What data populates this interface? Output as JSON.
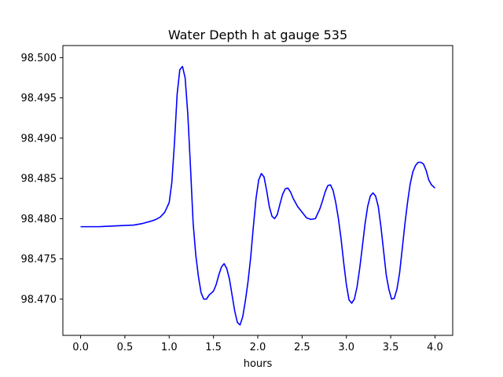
{
  "chart_data": {
    "type": "line",
    "title": "Water Depth h at gauge 535",
    "xlabel": "hours",
    "ylabel": "",
    "xlim": [
      -0.2,
      4.2
    ],
    "ylim": [
      98.4655,
      98.5015
    ],
    "xticks": [
      0.0,
      0.5,
      1.0,
      1.5,
      2.0,
      2.5,
      3.0,
      3.5,
      4.0
    ],
    "xtick_labels": [
      "0.0",
      "0.5",
      "1.0",
      "1.5",
      "2.0",
      "2.5",
      "3.0",
      "3.5",
      "4.0"
    ],
    "yticks": [
      98.47,
      98.475,
      98.48,
      98.485,
      98.49,
      98.495,
      98.5
    ],
    "ytick_labels": [
      "98.470",
      "98.475",
      "98.480",
      "98.485",
      "98.490",
      "98.495",
      "98.500"
    ],
    "grid": false,
    "series": [
      {
        "name": "",
        "color": "#0000ff",
        "x": [
          0.0,
          0.2,
          0.4,
          0.6,
          0.7,
          0.8,
          0.85,
          0.9,
          0.95,
          1.0,
          1.03,
          1.06,
          1.09,
          1.12,
          1.15,
          1.18,
          1.21,
          1.24,
          1.27,
          1.3,
          1.33,
          1.36,
          1.39,
          1.42,
          1.45,
          1.48,
          1.5,
          1.53,
          1.56,
          1.59,
          1.62,
          1.65,
          1.68,
          1.71,
          1.74,
          1.77,
          1.8,
          1.83,
          1.86,
          1.89,
          1.92,
          1.95,
          1.98,
          2.01,
          2.04,
          2.07,
          2.1,
          2.13,
          2.16,
          2.19,
          2.22,
          2.25,
          2.28,
          2.31,
          2.34,
          2.37,
          2.4,
          2.45,
          2.5,
          2.55,
          2.6,
          2.65,
          2.7,
          2.73,
          2.76,
          2.79,
          2.82,
          2.85,
          2.88,
          2.91,
          2.94,
          2.97,
          3.0,
          3.03,
          3.06,
          3.09,
          3.12,
          3.15,
          3.18,
          3.21,
          3.24,
          3.27,
          3.3,
          3.33,
          3.36,
          3.39,
          3.42,
          3.45,
          3.48,
          3.51,
          3.54,
          3.57,
          3.6,
          3.63,
          3.66,
          3.69,
          3.72,
          3.75,
          3.78,
          3.81,
          3.84,
          3.87,
          3.9,
          3.93,
          3.96,
          4.0
        ],
        "y": [
          98.479,
          98.479,
          98.4791,
          98.4792,
          98.4794,
          98.4797,
          98.4799,
          98.4802,
          98.4808,
          98.482,
          98.4845,
          98.4895,
          98.4955,
          98.4985,
          98.4989,
          98.4975,
          98.493,
          98.4865,
          98.4795,
          98.4755,
          98.4728,
          98.4708,
          98.47,
          98.47,
          98.4705,
          98.4708,
          98.471,
          98.4718,
          98.473,
          98.474,
          98.4744,
          98.4738,
          98.4725,
          98.4705,
          98.4685,
          98.4671,
          98.4668,
          98.4678,
          98.4698,
          98.4722,
          98.4752,
          98.479,
          98.4825,
          98.4848,
          98.4856,
          98.4852,
          98.4835,
          98.4815,
          98.4803,
          98.48,
          98.4805,
          98.4818,
          98.483,
          98.4837,
          98.4838,
          98.4833,
          98.4825,
          98.4815,
          98.4808,
          98.4801,
          98.4799,
          98.48,
          98.4812,
          98.4822,
          98.4833,
          98.4841,
          98.4842,
          98.4835,
          98.482,
          98.48,
          98.4775,
          98.4745,
          98.4718,
          98.4699,
          98.4695,
          98.47,
          98.4715,
          98.4738,
          98.4765,
          98.4793,
          98.4815,
          98.4828,
          98.4832,
          98.4828,
          98.4815,
          98.479,
          98.476,
          98.473,
          98.4712,
          98.47,
          98.4701,
          98.4712,
          98.4732,
          98.4762,
          98.4793,
          98.482,
          98.4843,
          98.4858,
          98.4866,
          98.487,
          98.487,
          98.4868,
          98.486,
          98.4848,
          98.4842,
          98.4838
        ]
      }
    ]
  }
}
